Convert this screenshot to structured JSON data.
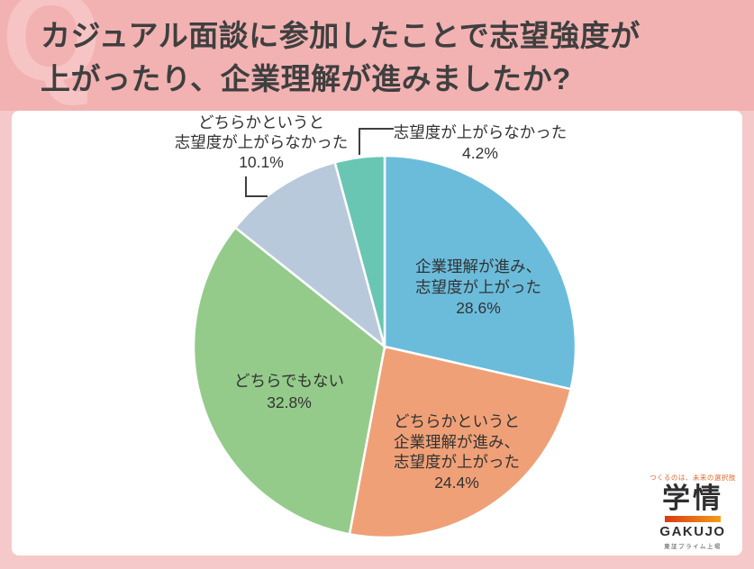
{
  "header": {
    "watermark": "Q",
    "title_text": "カジュアル面談に参加したことで志望強度が\n上がったり、企業理解が進みましたか?"
  },
  "chart_data": {
    "type": "pie",
    "title": "カジュアル面談に参加したことで志望強度が上がったり、企業理解が進みましたか?",
    "unit": "%",
    "start_angle_deg": -90,
    "direction": "clockwise",
    "slices": [
      {
        "key": "understanding-up",
        "label": "企業理解が進み、志望度が上がった",
        "value": 28.6,
        "color": "#6bbcdb"
      },
      {
        "key": "somewhat-up",
        "label": "どちらかというと企業理解が進み、志望度が上がった",
        "value": 24.4,
        "color": "#f0a077"
      },
      {
        "key": "neither",
        "label": "どちらでもない",
        "value": 32.8,
        "color": "#94cb8b"
      },
      {
        "key": "somewhat-not-up",
        "label": "どちらかというと志望度が上がらなかった",
        "value": 10.1,
        "color": "#b9c9dc"
      },
      {
        "key": "not-up",
        "label": "志望度が上がらなかった",
        "value": 4.2,
        "color": "#69c6b3"
      }
    ]
  },
  "callouts": {
    "lavender": "どちらかというと\n志望度が上がらなかった\n10.1%",
    "teal": "志望度が上がらなかった\n4.2%",
    "blue": "企業理解が進み、\n志望度が上がった\n28.6%",
    "orange": "どちらかというと\n企業理解が進み、\n志望度が上がった\n24.4%",
    "green": "どちらでもない\n32.8%"
  },
  "logo": {
    "slogan": "つくるのは、未来の選択肢",
    "name_jp": "学情",
    "name_en": "GAKUJO",
    "listing": "東証プライム上場"
  },
  "colors": {
    "frame_pink": "#f5c9c9",
    "header_pink": "#f2b2b2",
    "watermark_pink": "#f6c4c4",
    "title_text": "#3f3f3f",
    "panel_bg": "#ffffff",
    "leader_line": "#3f3f3f",
    "logo_bar_start": "#d93a14",
    "logo_bar_end": "#f59d1a"
  }
}
